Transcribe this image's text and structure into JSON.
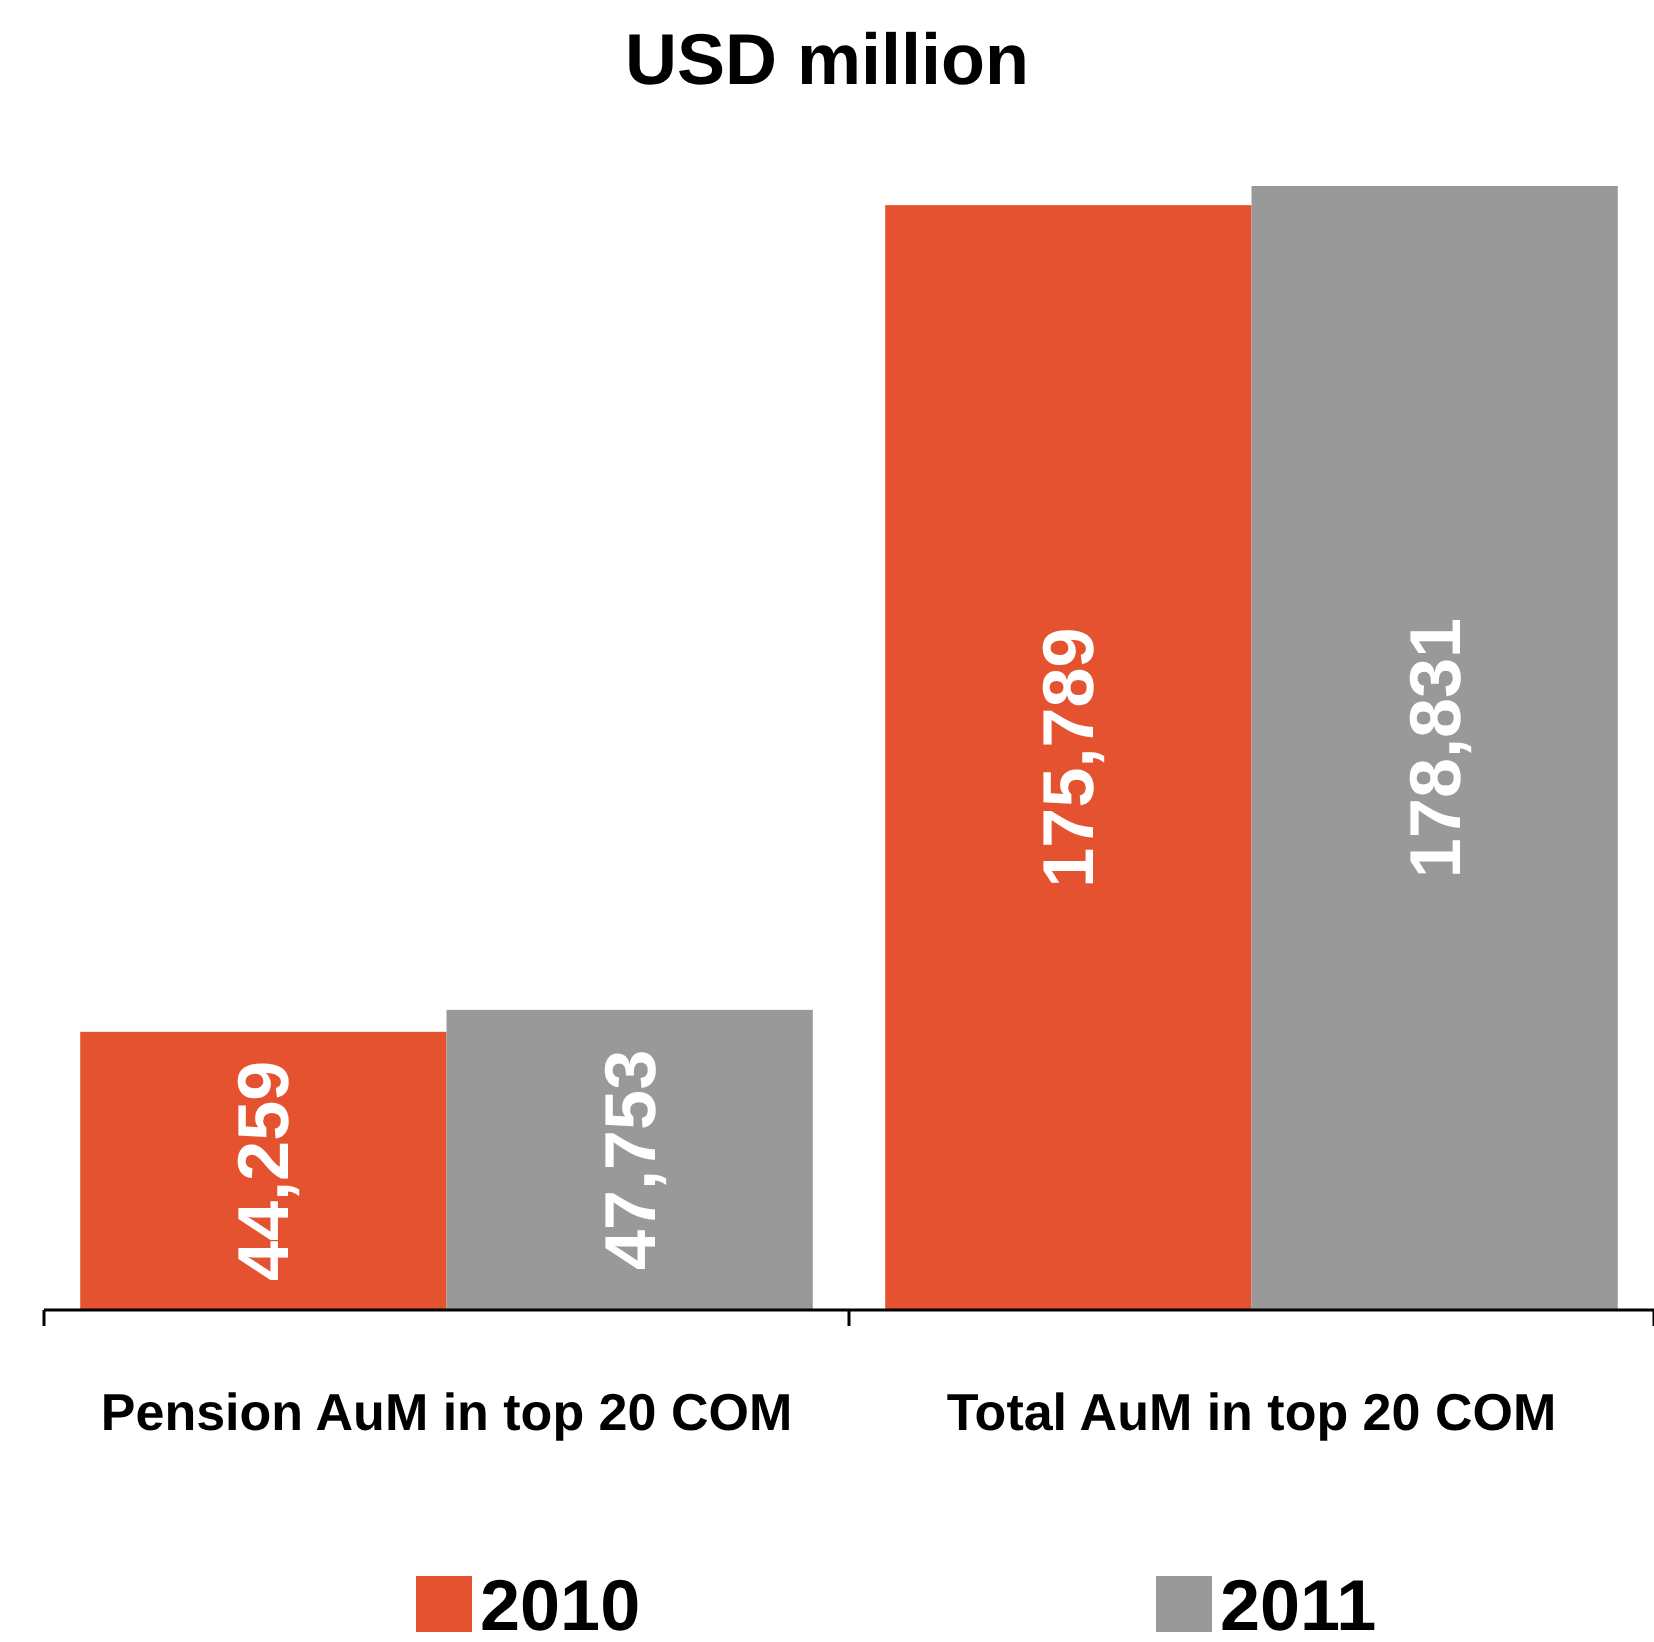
{
  "chart_data": {
    "type": "bar",
    "title": "USD million",
    "categories": [
      "Pension AuM in top 20 COM",
      "Total AuM in top 20 COM"
    ],
    "series": [
      {
        "name": "2010",
        "color": "#e4522f",
        "values": [
          44259,
          175789
        ],
        "value_labels": [
          "44,259",
          "175,789"
        ]
      },
      {
        "name": "2011",
        "color": "#999999",
        "values": [
          47753,
          178831
        ],
        "value_labels": [
          "47,753",
          "178,831"
        ]
      }
    ],
    "legend": "bottom"
  }
}
